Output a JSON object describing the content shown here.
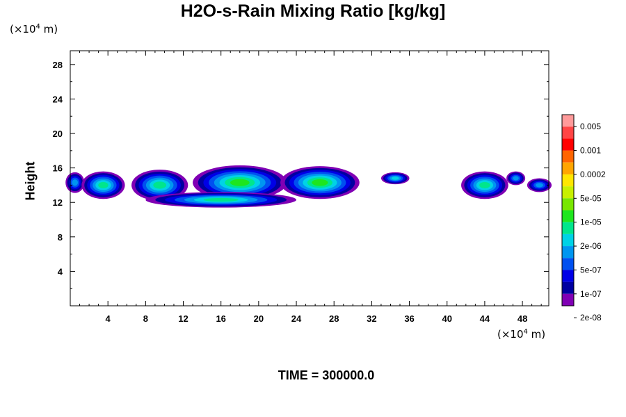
{
  "chart_data": {
    "type": "contour",
    "title": "H2O-s-Rain Mixing Ratio [kg/kg]",
    "ylabel": "Height",
    "x_unit_prefix": "(×10",
    "x_unit_exp": "4",
    "x_unit_suffix": " m)",
    "y_unit_prefix": "(×10",
    "y_unit_exp": "4",
    "y_unit_suffix": " m)",
    "xlim": [
      0,
      50.8
    ],
    "ylim": [
      0,
      29.6
    ],
    "x_ticks": [
      4,
      8,
      12,
      16,
      20,
      24,
      28,
      32,
      36,
      40,
      44,
      48
    ],
    "y_ticks": [
      4,
      8,
      12,
      16,
      20,
      24,
      28
    ],
    "colorbar_labels": [
      "0.005",
      "0.001",
      "0.0002",
      "5e-05",
      "1e-05",
      "2e-06",
      "5e-07",
      "1e-07",
      "2e-08"
    ],
    "colorbar_colors": [
      "#ff9a9a",
      "#ff4444",
      "#ff0000",
      "#ff6400",
      "#ffa500",
      "#ffe600",
      "#c8f000",
      "#78e600",
      "#1ee61e",
      "#00e68c",
      "#00d2e6",
      "#0096f0",
      "#0050f0",
      "#0000e6",
      "#0000a0",
      "#8000b4"
    ],
    "cells": [
      {
        "x": 0.5,
        "y": 14.3,
        "rx": 1.0,
        "ry": 1.2,
        "level": 1
      },
      {
        "x": 3.5,
        "y": 14.0,
        "rx": 2.3,
        "ry": 1.6,
        "level": 3
      },
      {
        "x": 9.5,
        "y": 14.0,
        "rx": 3.0,
        "ry": 1.8,
        "level": 3
      },
      {
        "x": 18.0,
        "y": 14.3,
        "rx": 5.0,
        "ry": 2.0,
        "level": 4
      },
      {
        "x": 16.0,
        "y": 12.3,
        "rx": 8.0,
        "ry": 0.9,
        "level": 3
      },
      {
        "x": 26.5,
        "y": 14.3,
        "rx": 4.2,
        "ry": 1.9,
        "level": 4
      },
      {
        "x": 34.5,
        "y": 14.8,
        "rx": 1.5,
        "ry": 0.7,
        "level": 2
      },
      {
        "x": 44.0,
        "y": 14.0,
        "rx": 2.5,
        "ry": 1.6,
        "level": 3
      },
      {
        "x": 47.3,
        "y": 14.8,
        "rx": 1.0,
        "ry": 0.8,
        "level": 1
      },
      {
        "x": 49.8,
        "y": 14.0,
        "rx": 1.3,
        "ry": 0.8,
        "level": 1
      }
    ]
  },
  "footer": "TIME = 300000.0"
}
